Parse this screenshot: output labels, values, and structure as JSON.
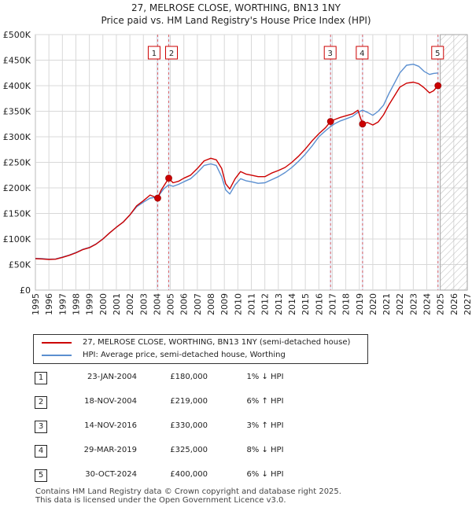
{
  "chart_data": {
    "type": "line",
    "title": "27, MELROSE CLOSE, WORTHING, BN13 1NY",
    "subtitle": "Price paid vs. HM Land Registry's House Price Index (HPI)",
    "y_ticks": [
      "£0",
      "£50K",
      "£100K",
      "£150K",
      "£200K",
      "£250K",
      "£300K",
      "£350K",
      "£400K",
      "£450K",
      "£500K"
    ],
    "y_tick_values": [
      0,
      50000,
      100000,
      150000,
      200000,
      250000,
      300000,
      350000,
      400000,
      450000,
      500000
    ],
    "x_ticks": [
      "1995",
      "1996",
      "1997",
      "1998",
      "1999",
      "2000",
      "2001",
      "2002",
      "2003",
      "2004",
      "2005",
      "2006",
      "2007",
      "2008",
      "2009",
      "2010",
      "2011",
      "2012",
      "2013",
      "2014",
      "2015",
      "2016",
      "2017",
      "2018",
      "2019",
      "2020",
      "2021",
      "2022",
      "2023",
      "2024",
      "2025",
      "2026",
      "2027"
    ],
    "xlim": [
      1995,
      2027
    ],
    "ylim": [
      0,
      500000
    ],
    "future_hatch_from": 2025.0,
    "series": [
      {
        "name": "27, MELROSE CLOSE, WORTHING, BN13 1NY (semi-detached house)",
        "color": "#cc0000",
        "points": [
          [
            1995.0,
            61500
          ],
          [
            1995.5,
            61000
          ],
          [
            1996.0,
            60000
          ],
          [
            1996.5,
            60500
          ],
          [
            1997.0,
            64000
          ],
          [
            1997.5,
            68000
          ],
          [
            1998.0,
            73000
          ],
          [
            1998.5,
            79000
          ],
          [
            1999.0,
            83000
          ],
          [
            1999.5,
            90000
          ],
          [
            2000.0,
            100000
          ],
          [
            2000.5,
            112000
          ],
          [
            2001.0,
            123000
          ],
          [
            2001.5,
            133000
          ],
          [
            2002.0,
            147000
          ],
          [
            2002.5,
            165000
          ],
          [
            2003.0,
            175000
          ],
          [
            2003.5,
            186000
          ],
          [
            2004.06,
            180000
          ],
          [
            2004.3,
            195000
          ],
          [
            2004.88,
            219000
          ],
          [
            2005.2,
            210000
          ],
          [
            2005.6,
            213000
          ],
          [
            2006.0,
            219000
          ],
          [
            2006.5,
            225000
          ],
          [
            2007.0,
            238000
          ],
          [
            2007.5,
            253000
          ],
          [
            2008.0,
            258000
          ],
          [
            2008.4,
            255000
          ],
          [
            2008.8,
            238000
          ],
          [
            2009.1,
            208000
          ],
          [
            2009.4,
            198000
          ],
          [
            2009.8,
            218000
          ],
          [
            2010.2,
            232000
          ],
          [
            2010.6,
            227000
          ],
          [
            2011.0,
            225000
          ],
          [
            2011.5,
            222000
          ],
          [
            2012.0,
            222000
          ],
          [
            2012.5,
            229000
          ],
          [
            2013.0,
            234000
          ],
          [
            2013.5,
            240000
          ],
          [
            2014.0,
            250000
          ],
          [
            2014.5,
            262000
          ],
          [
            2015.0,
            276000
          ],
          [
            2015.5,
            292000
          ],
          [
            2016.0,
            306000
          ],
          [
            2016.5,
            318000
          ],
          [
            2016.87,
            330000
          ],
          [
            2017.2,
            334000
          ],
          [
            2017.6,
            338000
          ],
          [
            2018.0,
            341000
          ],
          [
            2018.5,
            345000
          ],
          [
            2018.9,
            352000
          ],
          [
            2019.24,
            325000
          ],
          [
            2019.6,
            328000
          ],
          [
            2020.0,
            323000
          ],
          [
            2020.4,
            329000
          ],
          [
            2020.8,
            343000
          ],
          [
            2021.2,
            363000
          ],
          [
            2021.6,
            380000
          ],
          [
            2022.0,
            397000
          ],
          [
            2022.5,
            405000
          ],
          [
            2023.0,
            407000
          ],
          [
            2023.4,
            404000
          ],
          [
            2023.8,
            396000
          ],
          [
            2024.2,
            386000
          ],
          [
            2024.5,
            390000
          ],
          [
            2024.83,
            400000
          ]
        ]
      },
      {
        "name": "HPI: Average price, semi-detached house, Worthing",
        "color": "#5b8fd0",
        "points": [
          [
            1995.0,
            62000
          ],
          [
            1995.5,
            61500
          ],
          [
            1996.0,
            60500
          ],
          [
            1996.5,
            61000
          ],
          [
            1997.0,
            64500
          ],
          [
            1997.5,
            68500
          ],
          [
            1998.0,
            73500
          ],
          [
            1998.5,
            79500
          ],
          [
            1999.0,
            83500
          ],
          [
            1999.5,
            90500
          ],
          [
            2000.0,
            100000
          ],
          [
            2000.5,
            112000
          ],
          [
            2001.0,
            123000
          ],
          [
            2001.5,
            133000
          ],
          [
            2002.0,
            147000
          ],
          [
            2002.5,
            163000
          ],
          [
            2003.0,
            172000
          ],
          [
            2003.5,
            180000
          ],
          [
            2004.06,
            182000
          ],
          [
            2004.5,
            198000
          ],
          [
            2004.88,
            206000
          ],
          [
            2005.2,
            203000
          ],
          [
            2005.6,
            207000
          ],
          [
            2006.0,
            212000
          ],
          [
            2006.5,
            218000
          ],
          [
            2007.0,
            230000
          ],
          [
            2007.5,
            244000
          ],
          [
            2008.0,
            247000
          ],
          [
            2008.4,
            244000
          ],
          [
            2008.8,
            222000
          ],
          [
            2009.1,
            196000
          ],
          [
            2009.4,
            188000
          ],
          [
            2009.8,
            206000
          ],
          [
            2010.2,
            218000
          ],
          [
            2010.6,
            214000
          ],
          [
            2011.0,
            212000
          ],
          [
            2011.5,
            209000
          ],
          [
            2012.0,
            210000
          ],
          [
            2012.5,
            216000
          ],
          [
            2013.0,
            222000
          ],
          [
            2013.5,
            230000
          ],
          [
            2014.0,
            240000
          ],
          [
            2014.5,
            252000
          ],
          [
            2015.0,
            266000
          ],
          [
            2015.5,
            282000
          ],
          [
            2016.0,
            300000
          ],
          [
            2016.5,
            312000
          ],
          [
            2016.87,
            320000
          ],
          [
            2017.2,
            326000
          ],
          [
            2017.6,
            331000
          ],
          [
            2018.0,
            335000
          ],
          [
            2018.5,
            340000
          ],
          [
            2018.9,
            348000
          ],
          [
            2019.24,
            352000
          ],
          [
            2019.6,
            348000
          ],
          [
            2020.0,
            342000
          ],
          [
            2020.4,
            350000
          ],
          [
            2020.8,
            362000
          ],
          [
            2021.2,
            385000
          ],
          [
            2021.6,
            405000
          ],
          [
            2022.0,
            425000
          ],
          [
            2022.5,
            440000
          ],
          [
            2023.0,
            442000
          ],
          [
            2023.4,
            438000
          ],
          [
            2023.8,
            428000
          ],
          [
            2024.2,
            422000
          ],
          [
            2024.5,
            424000
          ],
          [
            2024.83,
            425000
          ]
        ]
      }
    ],
    "sales": [
      {
        "label": "1",
        "x": 2004.06,
        "price": 180000
      },
      {
        "label": "2",
        "x": 2004.88,
        "price": 219000
      },
      {
        "label": "3",
        "x": 2016.87,
        "price": 330000
      },
      {
        "label": "4",
        "x": 2019.24,
        "price": 325000
      },
      {
        "label": "5",
        "x": 2024.83,
        "price": 400000
      }
    ]
  },
  "legend": {
    "property": "27, MELROSE CLOSE, WORTHING, BN13 1NY (semi-detached house)",
    "hpi": "HPI: Average price, semi-detached house, Worthing"
  },
  "sales_table": [
    {
      "num": "1",
      "date": "23-JAN-2004",
      "price": "£180,000",
      "hpi": "1% ↓ HPI"
    },
    {
      "num": "2",
      "date": "18-NOV-2004",
      "price": "£219,000",
      "hpi": "6% ↑ HPI"
    },
    {
      "num": "3",
      "date": "14-NOV-2016",
      "price": "£330,000",
      "hpi": "3% ↑ HPI"
    },
    {
      "num": "4",
      "date": "29-MAR-2019",
      "price": "£325,000",
      "hpi": "8% ↓ HPI"
    },
    {
      "num": "5",
      "date": "30-OCT-2024",
      "price": "£400,000",
      "hpi": "6% ↓ HPI"
    }
  ],
  "footer": {
    "line1": "Contains HM Land Registry data © Crown copyright and database right 2025.",
    "line2": "This data is licensed under the Open Government Licence v3.0."
  }
}
